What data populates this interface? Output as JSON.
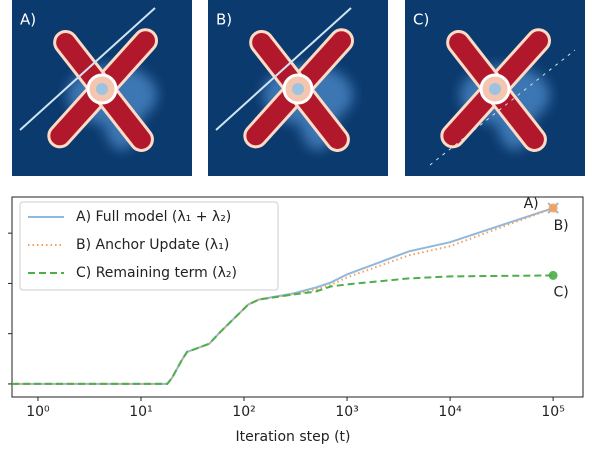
{
  "chart_data": {
    "type": "line",
    "panels": [
      "A)",
      "B)",
      "C)"
    ],
    "x": [
      0.56,
      1,
      10,
      18,
      20,
      25,
      28,
      32,
      46,
      58,
      78,
      110,
      140,
      300,
      500,
      700,
      1000,
      4000,
      10000,
      100000
    ],
    "series": [
      {
        "name": "A) Full model (λ₁ + λ₂)",
        "color": "#8fb8dc",
        "dash": "solid",
        "values": [
          0,
          0,
          0,
          0,
          0.12,
          0.48,
          0.64,
          0.68,
          0.8,
          1.02,
          1.28,
          1.58,
          1.68,
          1.8,
          1.92,
          2.02,
          2.18,
          2.64,
          2.82,
          3.5
        ]
      },
      {
        "name": "B) Anchor Update (λ₁)",
        "color": "#f5a05a",
        "dash": "dotted",
        "values": [
          0,
          0,
          0,
          0,
          0.12,
          0.48,
          0.64,
          0.68,
          0.8,
          1.02,
          1.28,
          1.58,
          1.68,
          1.78,
          1.88,
          1.97,
          2.12,
          2.56,
          2.74,
          3.5
        ]
      },
      {
        "name": "C) Remaining term (λ₂)",
        "color": "#4daf4a",
        "dash": "dashed",
        "values": [
          0,
          0,
          0,
          0,
          0.12,
          0.48,
          0.64,
          0.68,
          0.8,
          1.02,
          1.28,
          1.58,
          1.68,
          1.78,
          1.84,
          1.94,
          1.98,
          2.1,
          2.14,
          2.16
        ]
      }
    ],
    "annotations": [
      "A)",
      "B)",
      "C)"
    ],
    "xlabel": "Iteration step (t)",
    "xscale": "log",
    "xlim": [
      0.56,
      195000
    ],
    "xticks": [
      {
        "value": 1,
        "label": "10⁰"
      },
      {
        "value": 10,
        "label": "10¹"
      },
      {
        "value": 100,
        "label": "10²"
      },
      {
        "value": 1000,
        "label": "10³"
      },
      {
        "value": 10000,
        "label": "10⁴"
      },
      {
        "value": 100000,
        "label": "10⁵"
      }
    ],
    "ylim": [
      -0.26,
      3.72
    ],
    "yticks": [
      0,
      1,
      2,
      3
    ],
    "legend": "upper left"
  }
}
